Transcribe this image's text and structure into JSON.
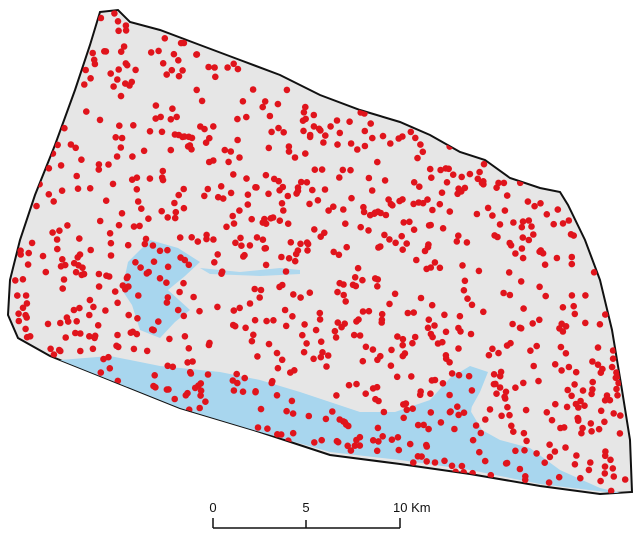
{
  "scale_bar": {
    "labels": [
      "0",
      "5",
      "10 Km"
    ]
  }
}
